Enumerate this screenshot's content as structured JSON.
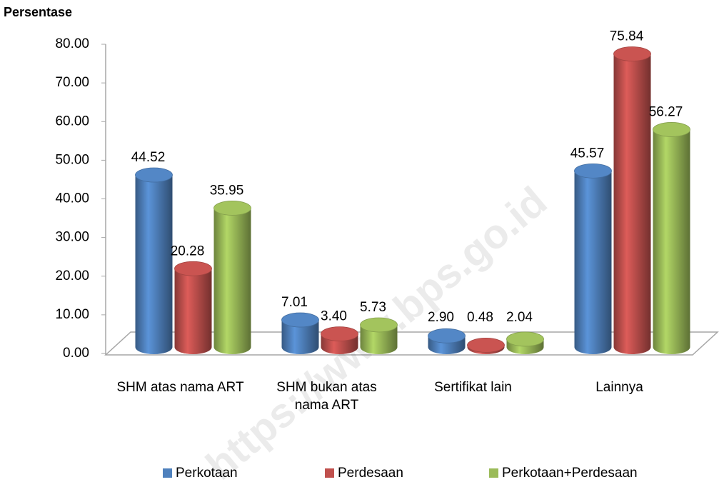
{
  "chart_data": {
    "type": "bar3d",
    "y_axis_title": "Persentase",
    "watermark": "https://www.bps.go.id",
    "categories": [
      "SHM atas nama ART",
      "SHM bukan atas nama ART",
      "Sertifikat lain",
      "Lainnya"
    ],
    "series": [
      {
        "name": "Perkotaan",
        "color": "#4f81bd",
        "values": [
          44.52,
          7.01,
          2.9,
          45.57
        ],
        "value_labels": [
          "44.52",
          "7.01",
          "2.90",
          "45.57"
        ]
      },
      {
        "name": "Perdesaan",
        "color": "#c0504d",
        "values": [
          20.28,
          3.4,
          0.48,
          75.84
        ],
        "value_labels": [
          "20.28",
          "3.40",
          "0.48",
          "75.84"
        ]
      },
      {
        "name": "Perkotaan+Perdesaan",
        "color": "#9bbb59",
        "values": [
          35.95,
          5.73,
          2.04,
          56.27
        ],
        "value_labels": [
          "35.95",
          "5.73",
          "2.04",
          "56.27"
        ]
      }
    ],
    "ylim": [
      0,
      80
    ],
    "yticks": [
      {
        "value": 0,
        "label": "0.00"
      },
      {
        "value": 10,
        "label": "10.00"
      },
      {
        "value": 20,
        "label": "20.00"
      },
      {
        "value": 30,
        "label": "30.00"
      },
      {
        "value": 40,
        "label": "40.00"
      },
      {
        "value": 50,
        "label": "50.00"
      },
      {
        "value": 60,
        "label": "60.00"
      },
      {
        "value": 70,
        "label": "70.00"
      },
      {
        "value": 80,
        "label": "80.00"
      }
    ],
    "legend": "bottom"
  }
}
